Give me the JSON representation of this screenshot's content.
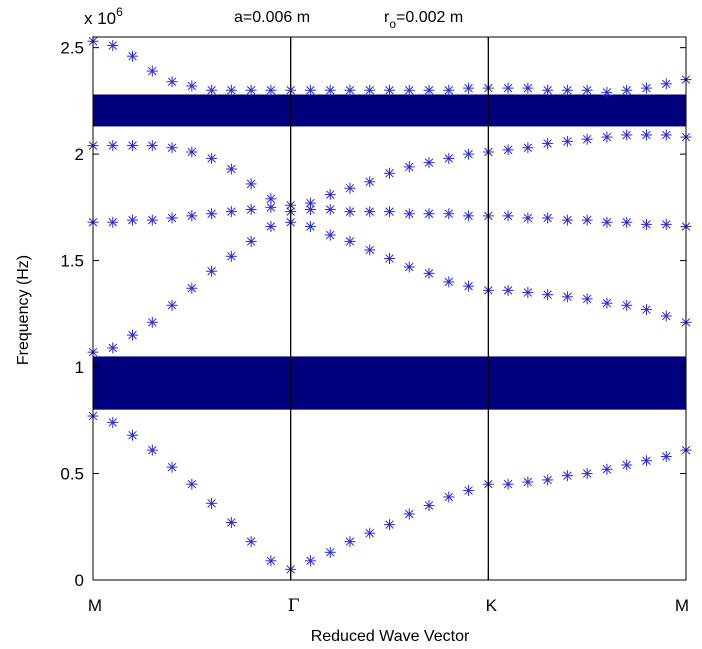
{
  "chart_data": {
    "type": "scatter",
    "title": {
      "a_text": "a=0.006 m",
      "r_main": "r",
      "r_sub": "o",
      "r_rest": "=0.002 m"
    },
    "xlabel": "Reduced Wave Vector",
    "ylabel": "Frequency (Hz)",
    "y_multiplier": {
      "base": "x 10",
      "exponent": "6"
    },
    "ylim": [
      0,
      2.55
    ],
    "yticks": [
      0,
      0.5,
      1,
      1.5,
      2,
      2.5
    ],
    "ytick_labels": [
      "0",
      "0.5",
      "1",
      "1.5",
      "2",
      "2.5"
    ],
    "xlim": [
      0,
      3
    ],
    "xticks": [
      0,
      1,
      2,
      3
    ],
    "xtick_labels": [
      "M",
      "Γ",
      "K",
      "M"
    ],
    "band_gaps": [
      {
        "from": 0.8,
        "to": 1.05
      },
      {
        "from": 2.13,
        "to": 2.28
      }
    ],
    "colors": {
      "marker": "#2b2bd9",
      "band_gap": "#00007f"
    },
    "series": [
      {
        "x": [
          0,
          0.1,
          0.2,
          0.3,
          0.4,
          0.5,
          0.6,
          0.7,
          0.8,
          0.9,
          1.0,
          1.1,
          1.2,
          1.3,
          1.4,
          1.5,
          1.6,
          1.7,
          1.8,
          1.9,
          2.0,
          2.1,
          2.2,
          2.3,
          2.4,
          2.5,
          2.6,
          2.7,
          2.8,
          2.9,
          3.0
        ],
        "values": [
          0.77,
          0.74,
          0.68,
          0.61,
          0.53,
          0.45,
          0.36,
          0.27,
          0.18,
          0.09,
          0.05,
          0.09,
          0.13,
          0.18,
          0.22,
          0.26,
          0.31,
          0.35,
          0.39,
          0.42,
          0.45,
          0.45,
          0.46,
          0.47,
          0.49,
          0.5,
          0.52,
          0.54,
          0.56,
          0.58,
          0.61
        ]
      },
      {
        "x": [
          0,
          0.1,
          0.2,
          0.3,
          0.4,
          0.5,
          0.6,
          0.7,
          0.8,
          0.9,
          1.0,
          1.1,
          1.2,
          1.3,
          1.4,
          1.5,
          1.6,
          1.7,
          1.8,
          1.9,
          2.0,
          2.1,
          2.2,
          2.3,
          2.4,
          2.5,
          2.6,
          2.7,
          2.8,
          2.9,
          3.0
        ],
        "values": [
          1.07,
          1.09,
          1.15,
          1.21,
          1.29,
          1.37,
          1.45,
          1.52,
          1.59,
          1.66,
          1.68,
          1.66,
          1.62,
          1.59,
          1.55,
          1.51,
          1.47,
          1.44,
          1.4,
          1.38,
          1.36,
          1.36,
          1.35,
          1.34,
          1.33,
          1.32,
          1.3,
          1.29,
          1.27,
          1.24,
          1.21
        ]
      },
      {
        "x": [
          0,
          0.1,
          0.2,
          0.3,
          0.4,
          0.5,
          0.6,
          0.7,
          0.8,
          0.9,
          1.0,
          1.1,
          1.2,
          1.3,
          1.4,
          1.5,
          1.6,
          1.7,
          1.8,
          1.9,
          2.0,
          2.1,
          2.2,
          2.3,
          2.4,
          2.5,
          2.6,
          2.7,
          2.8,
          2.9,
          3.0
        ],
        "values": [
          1.68,
          1.68,
          1.69,
          1.69,
          1.7,
          1.71,
          1.72,
          1.73,
          1.74,
          1.75,
          1.76,
          1.74,
          1.74,
          1.73,
          1.73,
          1.73,
          1.72,
          1.72,
          1.72,
          1.71,
          1.71,
          1.71,
          1.7,
          1.7,
          1.69,
          1.69,
          1.68,
          1.68,
          1.67,
          1.67,
          1.66
        ]
      },
      {
        "x": [
          0,
          0.1,
          0.2,
          0.3,
          0.4,
          0.5,
          0.6,
          0.7,
          0.8,
          0.9,
          1.0,
          1.1,
          1.2,
          1.3,
          1.4,
          1.5,
          1.6,
          1.7,
          1.8,
          1.9,
          2.0,
          2.1,
          2.2,
          2.3,
          2.4,
          2.5,
          2.6,
          2.7,
          2.8,
          2.9,
          3.0
        ],
        "values": [
          2.04,
          2.04,
          2.04,
          2.04,
          2.03,
          2.01,
          1.98,
          1.93,
          1.86,
          1.79,
          1.73,
          1.77,
          1.81,
          1.84,
          1.87,
          1.91,
          1.94,
          1.96,
          1.98,
          2.0,
          2.01,
          2.02,
          2.03,
          2.05,
          2.06,
          2.07,
          2.08,
          2.09,
          2.09,
          2.09,
          2.08
        ]
      },
      {
        "x": [
          0,
          0.1,
          0.2,
          0.3,
          0.4,
          0.5,
          0.6,
          0.7,
          0.8,
          0.9,
          1.0,
          1.1,
          1.2,
          1.3,
          1.4,
          1.5,
          1.6,
          1.7,
          1.8,
          1.9,
          2.0,
          2.1,
          2.2,
          2.3,
          2.4,
          2.5,
          2.6,
          2.7,
          2.8,
          2.9,
          3.0
        ],
        "values": [
          2.53,
          2.51,
          2.46,
          2.39,
          2.34,
          2.32,
          2.3,
          2.3,
          2.3,
          2.3,
          2.3,
          2.3,
          2.3,
          2.3,
          2.3,
          2.3,
          2.3,
          2.3,
          2.3,
          2.31,
          2.31,
          2.31,
          2.31,
          2.3,
          2.3,
          2.3,
          2.29,
          2.3,
          2.31,
          2.33,
          2.35
        ]
      }
    ]
  }
}
